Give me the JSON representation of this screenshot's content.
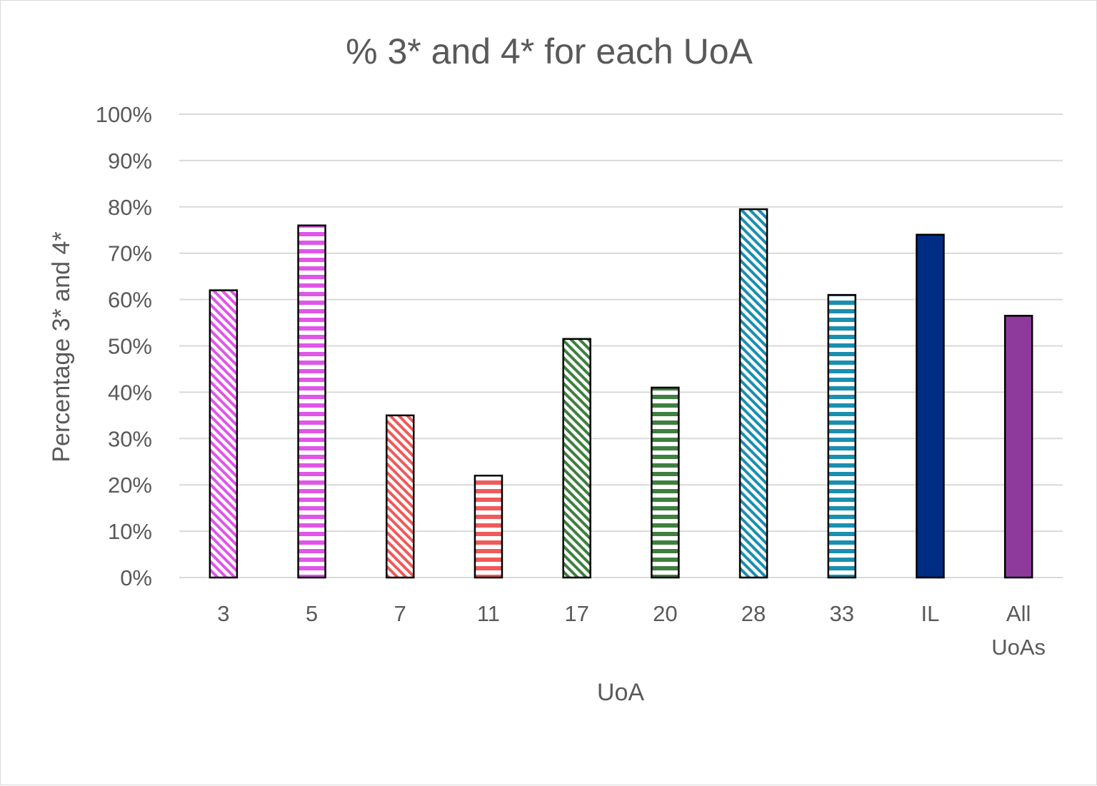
{
  "chart_data": {
    "type": "bar",
    "title": "% 3* and 4* for each UoA",
    "xlabel": "UoA",
    "ylabel": "Percentage 3* and 4*",
    "ylim": [
      0,
      100
    ],
    "y_ticks": [
      "0%",
      "10%",
      "20%",
      "30%",
      "40%",
      "50%",
      "60%",
      "70%",
      "80%",
      "90%",
      "100%"
    ],
    "grid": true,
    "legend": "none",
    "categories": [
      "3",
      "5",
      "7",
      "11",
      "17",
      "20",
      "28",
      "33",
      "IL",
      "All UoAs"
    ],
    "values": [
      62,
      76,
      35,
      22,
      51.5,
      41,
      79.5,
      61,
      74,
      56.5
    ],
    "bar_styles": [
      {
        "color": "#e056e8",
        "pattern": "diagonal"
      },
      {
        "color": "#e056e8",
        "pattern": "horizontal"
      },
      {
        "color": "#f05a5a",
        "pattern": "diagonal"
      },
      {
        "color": "#f05a5a",
        "pattern": "horizontal"
      },
      {
        "color": "#3f7f3f",
        "pattern": "diagonal"
      },
      {
        "color": "#3f7f3f",
        "pattern": "horizontal"
      },
      {
        "color": "#1a8fb0",
        "pattern": "diagonal"
      },
      {
        "color": "#1a8fb0",
        "pattern": "horizontal"
      },
      {
        "color": "#002d84",
        "pattern": "solid"
      },
      {
        "color": "#8e3a9d",
        "pattern": "solid"
      }
    ]
  }
}
